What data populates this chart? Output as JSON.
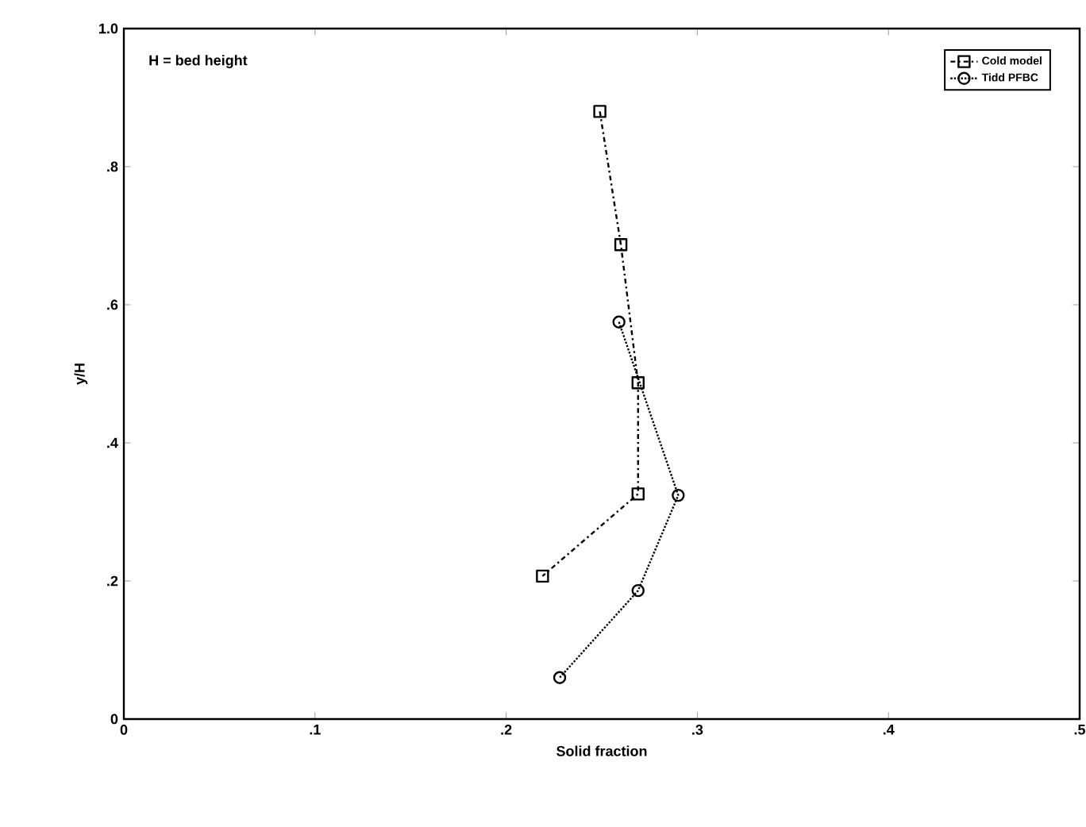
{
  "chart_data": {
    "type": "line",
    "xlabel": "Solid fraction",
    "ylabel": "y/H",
    "annotations": [
      "H = bed height"
    ],
    "xlim": [
      0,
      0.5
    ],
    "xticks": [
      0,
      {
        "value": 0.1,
        "label": ".1"
      },
      {
        "value": 0.2,
        "label": ".2"
      },
      {
        "value": 0.3,
        "label": ".3"
      },
      {
        "value": 0.4,
        "label": ".4"
      },
      {
        "value": 0.5,
        "label": ".5"
      }
    ],
    "ylim": [
      0,
      1
    ],
    "yticks": [
      0,
      {
        "value": 0.2,
        "label": ".2"
      },
      {
        "value": 0.4,
        "label": ".4"
      },
      {
        "value": 0.6,
        "label": ".6"
      },
      {
        "value": 0.8,
        "label": ".8"
      },
      {
        "value": 1,
        "label": "1.0"
      }
    ],
    "legend": "top right",
    "grid": false,
    "series": [
      {
        "name": "Cold model",
        "color": "#000000",
        "marker": "square",
        "line_style": "dashdot",
        "x": [
          0.249,
          0.26,
          0.269,
          0.269,
          0.219
        ],
        "values": [
          0.88,
          0.687,
          0.487,
          0.326,
          0.207
        ]
      },
      {
        "name": "Tidd PFBC",
        "color": "#000000",
        "marker": "circle",
        "line_style": "dotted",
        "x": [
          0.259,
          0.29,
          0.269,
          0.228
        ],
        "values": [
          0.575,
          0.324,
          0.186,
          0.06
        ]
      }
    ]
  }
}
